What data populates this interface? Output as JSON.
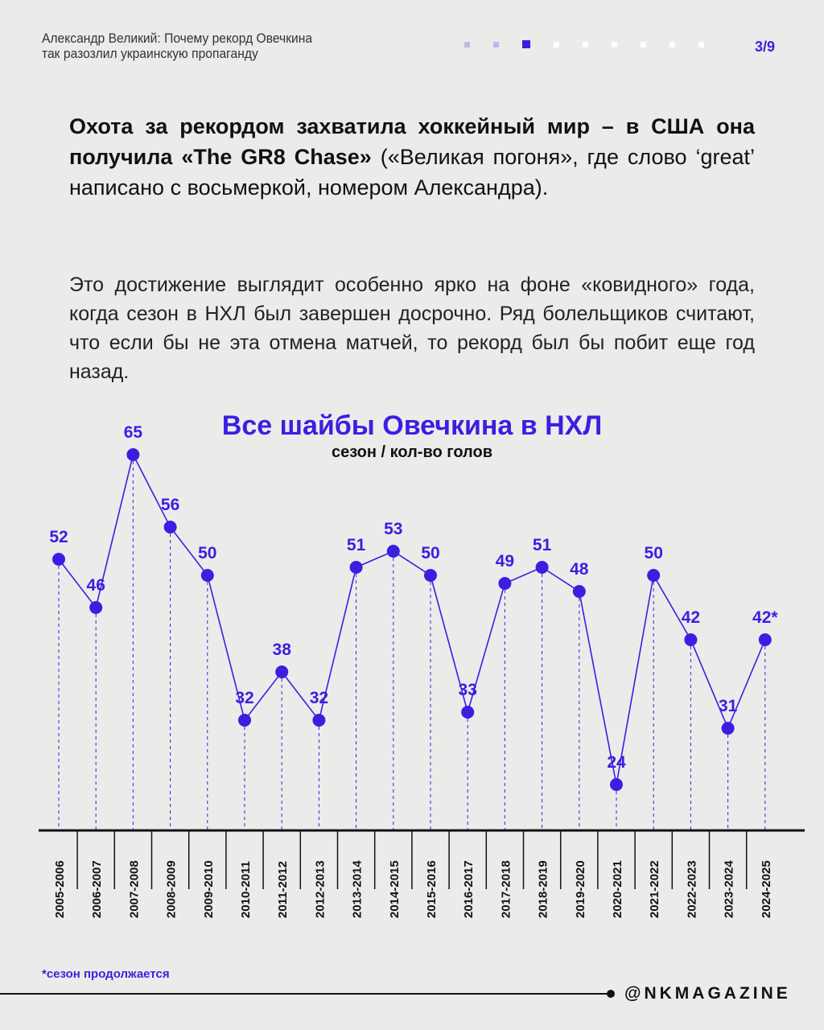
{
  "header": {
    "title_line1": "Александр Великий: Почему рекорд Овечкина",
    "title_line2": "так разозлил украинскую пропаганду",
    "page": "3/9",
    "total_pages": 9,
    "current_page": 3
  },
  "body": {
    "p1_bold": "Охота за рекордом захватила хоккейный мир – в США она получила «The GR8 Chase»",
    "p1_rest": " («Великая погоня», где слово ‘great’ написано с восьмеркой, номером Александра).",
    "p2": "Это достижение выглядит особенно ярко на фоне «ковидного» года, когда сезон в НХЛ был завершен досрочно. Ряд болельщиков считают, что если бы не эта отмена матчей, то рекорд был бы побит еще год назад."
  },
  "chart_data": {
    "type": "line",
    "title": "Все шайбы Овечкина в НХЛ",
    "subtitle": "сезон / кол-во голов",
    "categories": [
      "2005-2006",
      "2006-2007",
      "2007-2008",
      "2008-2009",
      "2009-2010",
      "2010-2011",
      "2011-2012",
      "2012-2013",
      "2013-2014",
      "2014-2015",
      "2015-2016",
      "2016-2017",
      "2017-2018",
      "2018-2019",
      "2019-2020",
      "2020-2021",
      "2021-2022",
      "2022-2023",
      "2023-2024",
      "2024-2025"
    ],
    "values": [
      52,
      46,
      65,
      56,
      50,
      32,
      38,
      32,
      51,
      53,
      50,
      33,
      49,
      51,
      48,
      24,
      50,
      42,
      31,
      42
    ],
    "labels": [
      "52",
      "46",
      "65",
      "56",
      "50",
      "32",
      "38",
      "32",
      "51",
      "53",
      "50",
      "33",
      "49",
      "51",
      "48",
      "24",
      "50",
      "42",
      "31",
      "42*"
    ],
    "color": "#3a1fe0"
  },
  "footer": {
    "note": "*сезон продолжается",
    "brand": "@NKMAGAZINE"
  }
}
